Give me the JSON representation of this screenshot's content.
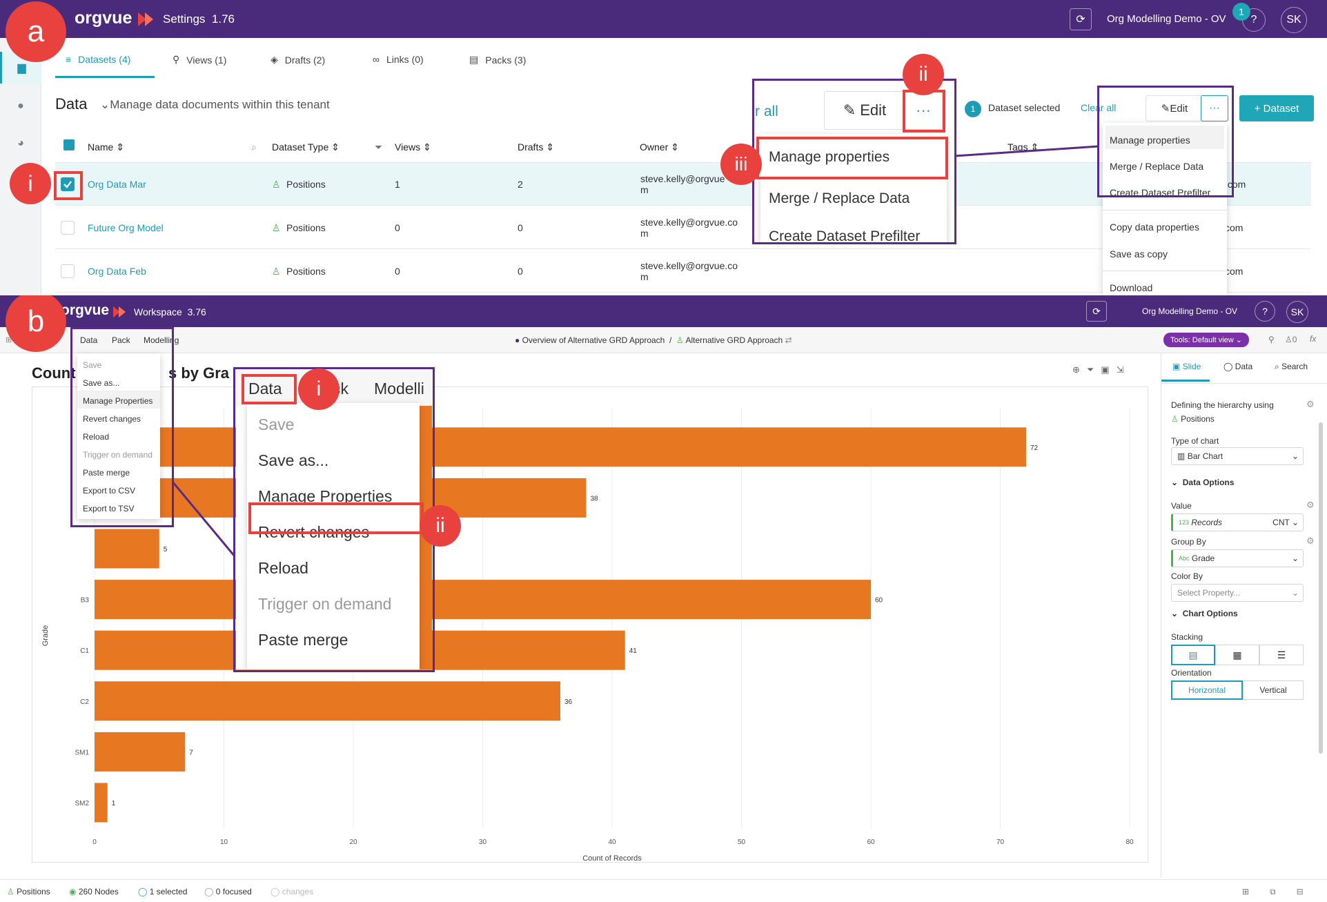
{
  "panel_a": {
    "label": "a",
    "app": {
      "brand": "orgvue",
      "title": "Settings",
      "version": "1.76",
      "tenant": "Org Modelling Demo - OV",
      "notification_count": "1",
      "help": "?",
      "user_initials": "SK"
    },
    "tabs": [
      {
        "label": "Datasets (4)",
        "icon": "database-icon"
      },
      {
        "label": "Views (1)",
        "icon": "pin-icon"
      },
      {
        "label": "Drafts (2)",
        "icon": "layers-icon"
      },
      {
        "label": "Links (0)",
        "icon": "link-icon"
      },
      {
        "label": "Packs (3)",
        "icon": "pack-icon"
      }
    ],
    "section": {
      "title": "Data",
      "subtitle": "Manage data documents within this tenant"
    },
    "columns": [
      "Name",
      "Dataset Type",
      "Views",
      "Drafts",
      "Owner",
      "Tags"
    ],
    "rows": [
      {
        "name": "Org Data Mar",
        "type": "Positions",
        "views": "1",
        "drafts": "2",
        "owner_line1": "steve.kelly@orgvue",
        "owner_line2": "m",
        "tail": ".com",
        "checked": true
      },
      {
        "name": "Future Org Model",
        "type": "Positions",
        "views": "0",
        "drafts": "0",
        "owner_line1": "steve.kelly@orgvue.co",
        "owner_line2": "m",
        "tail": "com",
        "checked": false
      },
      {
        "name": "Org Data Feb",
        "type": "Positions",
        "views": "0",
        "drafts": "0",
        "owner_line1": "steve.kelly@orgvue.co",
        "owner_line2": "m",
        "tail": "com",
        "checked": false
      }
    ],
    "toolbar": {
      "selected_count": "1",
      "selected_text": "Dataset selected",
      "clear_all": "Clear all",
      "edit": "Edit",
      "more": "···",
      "add_dataset": "+ Dataset"
    },
    "menu_items": [
      "Manage properties",
      "Merge / Replace Data",
      "Create Dataset Prefilter",
      "Copy data properties",
      "Save as copy",
      "Download"
    ],
    "zoom": {
      "clear_partial": "r all",
      "edit": "Edit",
      "more": "···",
      "items": [
        "Manage properties",
        "Merge / Replace Data",
        "Create Dataset Prefilter"
      ]
    },
    "callouts": {
      "i": "i",
      "ii": "ii",
      "iii": "iii"
    }
  },
  "panel_b": {
    "label": "b",
    "app": {
      "brand": "orgvue",
      "title": "Workspace",
      "version": "3.76",
      "tenant": "Org Modelling Demo - OV",
      "help": "?",
      "user_initials": "SK"
    },
    "menubar": [
      "Data",
      "Pack",
      "Modelling"
    ],
    "breadcrumb": {
      "first": "Overview of Alternative GRD Approach",
      "sep": "/",
      "second": "Alternative GRD Approach"
    },
    "tools_label": "Tools: Default view",
    "counter": "0",
    "fx": "fx",
    "chart_title_left": "Count",
    "chart_title_right": "s by Gra",
    "data_menu": [
      "Save",
      "Save as...",
      "Manage Properties",
      "Revert changes",
      "Reload",
      "Trigger on demand",
      "Paste merge",
      "Export to CSV",
      "Export to TSV"
    ],
    "data_menu_disabled": [
      0,
      5
    ],
    "zoom": {
      "menubar": [
        "Data",
        "ck",
        "Modelli"
      ],
      "items": [
        "Save",
        "Save as...",
        "Manage Properties",
        "Revert changes",
        "Reload",
        "Trigger on demand",
        "Paste merge",
        "Export to CSV",
        "Export to TSV"
      ]
    },
    "callouts": {
      "i": "i",
      "ii": "ii"
    },
    "right_panel": {
      "tabs": [
        "Slide",
        "Data",
        "Search"
      ],
      "hierarchy_label": "Defining the hierarchy using",
      "hierarchy_value": "Positions",
      "type_label": "Type of chart",
      "type_value": "Bar Chart",
      "data_options": "Data Options",
      "value_label": "Value",
      "value_type": "123",
      "value_field": "Records",
      "value_agg": "CNT",
      "group_label": "Group By",
      "group_type": "Abc",
      "group_field": "Grade",
      "color_label": "Color By",
      "color_placeholder": "Select Property...",
      "chart_options": "Chart Options",
      "stacking_label": "Stacking",
      "orientation_label": "Orientation",
      "orientation_options": [
        "Horizontal",
        "Vertical"
      ]
    },
    "status": {
      "type": "Positions",
      "nodes": "260 Nodes",
      "selected": "1 selected",
      "focused": "0 focused",
      "changes": "changes"
    }
  },
  "chart_data": {
    "type": "bar",
    "orientation": "horizontal",
    "color": "#e87722",
    "categories": [
      "",
      "",
      "",
      "B3",
      "C1",
      "C2",
      "SM1",
      "SM2"
    ],
    "values": [
      72,
      38,
      5,
      60,
      41,
      36,
      7,
      1
    ],
    "value_labels": [
      "72",
      "38",
      "5",
      "60",
      "41",
      "36",
      "7",
      "1"
    ],
    "xlabel": "Count of Records",
    "ylabel": "Grade",
    "xlim": [
      0,
      80
    ],
    "xticks": [
      0,
      10,
      20,
      30,
      40,
      50,
      60,
      70,
      80
    ],
    "grid": true
  },
  "colors": {
    "brand_purple": "#4a2a7a",
    "accent_teal": "#1f9bb5",
    "callout_red": "#e8413e",
    "annotation_purple": "#5b2a86",
    "bar_orange": "#e87722"
  }
}
